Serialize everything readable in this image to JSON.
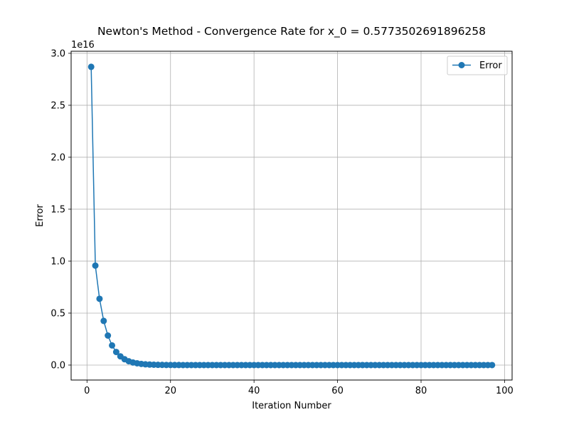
{
  "chart_data": {
    "type": "line",
    "title": "Newton's Method - Convergence Rate for x_0 = 0.5773502691896258",
    "xlabel": "Iteration Number",
    "ylabel": "Error",
    "offset_label": "1e16",
    "xlim": [
      -3.8,
      101.8
    ],
    "ylim": [
      -1440000000000000.0,
      3.02e+16
    ],
    "xticks": [
      0,
      20,
      40,
      60,
      80,
      100
    ],
    "xtick_labels": [
      "0",
      "20",
      "40",
      "60",
      "80",
      "100"
    ],
    "yticks": [
      0,
      5000000000000000.0,
      1e+16,
      1.5e+16,
      2e+16,
      2.5e+16,
      3e+16
    ],
    "ytick_labels": [
      "0.0",
      "0.5",
      "1.0",
      "1.5",
      "2.0",
      "2.5",
      "3.0"
    ],
    "grid": true,
    "legend": "top-right",
    "series": [
      {
        "name": "Error",
        "color": "#1f77b4",
        "marker": "circle",
        "x": [
          1,
          2,
          3,
          4,
          5,
          6,
          7,
          8,
          9,
          10,
          11,
          12,
          13,
          14,
          15,
          16,
          17,
          18,
          19,
          20,
          21,
          22,
          23,
          24,
          25,
          26,
          27,
          28,
          29,
          30,
          31,
          32,
          33,
          34,
          35,
          36,
          37,
          38,
          39,
          40,
          41,
          42,
          43,
          44,
          45,
          46,
          47,
          48,
          49,
          50,
          51,
          52,
          53,
          54,
          55,
          56,
          57,
          58,
          59,
          60,
          61,
          62,
          63,
          64,
          65,
          66,
          67,
          68,
          69,
          70,
          71,
          72,
          73,
          74,
          75,
          76,
          77,
          78,
          79,
          80,
          81,
          82,
          83,
          84,
          85,
          86,
          87,
          88,
          89,
          90,
          91,
          92,
          93,
          94,
          95,
          96,
          97
        ],
        "y": [
          2.87e+16,
          9570000000000000.0,
          6380000000000000.0,
          4250000000000000.0,
          2840000000000000.0,
          1890000000000000.0,
          1260000000000000.0,
          840000000000000.0,
          560000000000000.0,
          370000000000000.0,
          250000000000000.0,
          170000000000000.0,
          110000000000000.0,
          74000000000000.0,
          49000000000000.0,
          33000000000000.0,
          22000000000000.0,
          15000000000000.0,
          9700000000000.0,
          6500000000000.0,
          4300000000000.0,
          2900000000000.0,
          1900000000000.0,
          1300000000000.0,
          850000000000.0,
          570000000000.0,
          380000000000.0,
          250000000000.0,
          170000000000.0,
          110000000000.0,
          74000000000.0,
          50000000000.0,
          33000000000.0,
          22000000000.0,
          15000000000.0,
          9800000000.0,
          6500000000.0,
          4400000000.0,
          2900000000.0,
          1900000000.0,
          1300000000.0,
          860000000.0,
          570000000.0,
          380000000.0,
          250000000.0,
          170000000.0,
          110000000.0,
          75000000.0,
          50000000.0,
          33000000.0,
          22000000.0,
          15000000.0,
          9900000.0,
          6600000.0,
          4400000.0,
          2900000.0,
          2000000.0,
          1300000.0,
          870000.0,
          580000.0,
          390000.0,
          260000.0,
          170000.0,
          110000.0,
          76000.0,
          51000.0,
          34000.0,
          23000.0,
          15000.0,
          10000.0,
          6700.0,
          4500.0,
          3000.0,
          2000.0,
          1300.0,
          880,
          590,
          390,
          260,
          170,
          115,
          77,
          51,
          34,
          23,
          15,
          10,
          6.8,
          4.5,
          3,
          2,
          1.3,
          0.9,
          0.6,
          0.4,
          0.27,
          0.18
        ]
      }
    ]
  }
}
